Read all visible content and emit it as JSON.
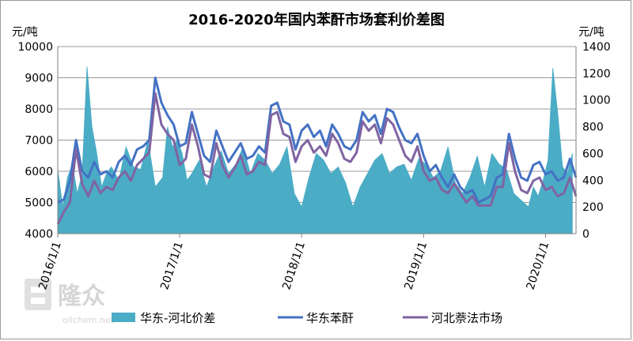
{
  "chart_data": {
    "type": "area+line",
    "title": "2016-2020年国内苯酐市场套利价差图",
    "left_unit": "元/吨",
    "right_unit": "元/吨",
    "y_left": {
      "min": 4000,
      "max": 10000,
      "ticks": [
        4000,
        5000,
        6000,
        7000,
        8000,
        9000,
        10000
      ],
      "tick_labels": [
        "4000",
        "5000",
        "6000",
        "7000",
        "8000",
        "9000",
        "10000"
      ]
    },
    "y_right": {
      "min": 0,
      "max": 1400,
      "ticks": [
        0,
        200,
        400,
        600,
        800,
        1000,
        1200,
        1400
      ],
      "tick_labels": [
        "0",
        "200",
        "400",
        "600",
        "800",
        "1000",
        "1200",
        "1400"
      ]
    },
    "x_axis": {
      "start": "2016/1/1",
      "end": "2020/3/31",
      "tick_labels": [
        "2016/1/1",
        "2017/1/1",
        "2018/1/1",
        "2019/1/1",
        "2020/1/1"
      ],
      "tick_positions": [
        2016.0,
        2017.0,
        2018.0,
        2019.0,
        2020.0
      ]
    },
    "grid": "horizontal",
    "legend_position": "bottom",
    "series": [
      {
        "name": "华东-河北价差",
        "kind": "area",
        "axis": "right",
        "color": "#4BACC6",
        "x": [
          2016.0,
          2016.04,
          2016.08,
          2016.12,
          2016.16,
          2016.2,
          2016.24,
          2016.28,
          2016.32,
          2016.36,
          2016.4,
          2016.44,
          2016.5,
          2016.56,
          2016.62,
          2016.68,
          2016.74,
          2016.8,
          2016.86,
          2016.9,
          2016.94,
          2016.98,
          2017.02,
          2017.06,
          2017.1,
          2017.16,
          2017.22,
          2017.28,
          2017.34,
          2017.4,
          2017.46,
          2017.52,
          2017.58,
          2017.64,
          2017.7,
          2017.76,
          2017.82,
          2017.88,
          2017.94,
          2018.0,
          2018.06,
          2018.12,
          2018.18,
          2018.24,
          2018.3,
          2018.36,
          2018.42,
          2018.48,
          2018.54,
          2018.6,
          2018.66,
          2018.72,
          2018.78,
          2018.84,
          2018.9,
          2018.96,
          2019.02,
          2019.08,
          2019.14,
          2019.2,
          2019.26,
          2019.32,
          2019.38,
          2019.44,
          2019.5,
          2019.56,
          2019.62,
          2019.68,
          2019.74,
          2019.8,
          2019.86,
          2019.9,
          2019.94,
          2019.98,
          2020.02,
          2020.06,
          2020.1,
          2020.14,
          2020.18,
          2020.22
        ],
        "values": [
          480,
          200,
          420,
          520,
          300,
          450,
          1250,
          800,
          600,
          350,
          450,
          500,
          400,
          650,
          500,
          480,
          700,
          350,
          420,
          800,
          650,
          700,
          600,
          400,
          450,
          550,
          350,
          500,
          620,
          450,
          520,
          650,
          450,
          600,
          550,
          450,
          520,
          650,
          300,
          200,
          420,
          600,
          550,
          450,
          500,
          380,
          200,
          350,
          450,
          550,
          600,
          450,
          500,
          520,
          400,
          560,
          520,
          420,
          470,
          650,
          380,
          300,
          420,
          580,
          350,
          600,
          520,
          480,
          300,
          250,
          200,
          350,
          280,
          400,
          550,
          1240,
          900,
          500,
          450,
          600
        ],
        "hint": "noisy filled area with sharp spikes; peaks near early 2016 (~1250) and early 2020 (~1240)"
      },
      {
        "name": "华东苯酐",
        "kind": "line",
        "axis": "left",
        "color": "#4472C4",
        "x": [
          2016.0,
          2016.05,
          2016.1,
          2016.15,
          2016.2,
          2016.25,
          2016.3,
          2016.35,
          2016.4,
          2016.45,
          2016.5,
          2016.55,
          2016.6,
          2016.65,
          2016.7,
          2016.75,
          2016.8,
          2016.85,
          2016.9,
          2016.95,
          2017.0,
          2017.05,
          2017.1,
          2017.15,
          2017.2,
          2017.25,
          2017.3,
          2017.35,
          2017.4,
          2017.45,
          2017.5,
          2017.55,
          2017.6,
          2017.65,
          2017.7,
          2017.75,
          2017.8,
          2017.85,
          2017.9,
          2017.95,
          2018.0,
          2018.05,
          2018.1,
          2018.15,
          2018.2,
          2018.25,
          2018.3,
          2018.35,
          2018.4,
          2018.45,
          2018.5,
          2018.55,
          2018.6,
          2018.65,
          2018.7,
          2018.75,
          2018.8,
          2018.85,
          2018.9,
          2018.95,
          2019.0,
          2019.05,
          2019.1,
          2019.15,
          2019.2,
          2019.25,
          2019.3,
          2019.35,
          2019.4,
          2019.45,
          2019.5,
          2019.55,
          2019.6,
          2019.65,
          2019.7,
          2019.75,
          2019.8,
          2019.85,
          2019.9,
          2019.95,
          2020.0,
          2020.05,
          2020.1,
          2020.15,
          2020.2,
          2020.25
        ],
        "values": [
          5000,
          5100,
          5700,
          7000,
          6000,
          5800,
          6300,
          5900,
          6000,
          5800,
          6300,
          6500,
          6200,
          6700,
          6800,
          7000,
          9000,
          8200,
          7800,
          7500,
          6800,
          6900,
          7900,
          7200,
          6500,
          6300,
          7300,
          6800,
          6300,
          6600,
          6900,
          6400,
          6500,
          6800,
          6600,
          8100,
          8200,
          7600,
          7500,
          6700,
          7300,
          7500,
          7100,
          7300,
          6800,
          7500,
          7200,
          6800,
          6700,
          7000,
          7900,
          7600,
          7800,
          7200,
          8000,
          7900,
          7400,
          7000,
          6900,
          7200,
          6500,
          6000,
          6200,
          5800,
          5500,
          5900,
          5500,
          5300,
          5400,
          5000,
          5100,
          5200,
          5800,
          5900,
          7200,
          6400,
          5800,
          5700,
          6200,
          6300,
          5900,
          6000,
          5700,
          5800,
          6400,
          5800
        ],
        "hint": "thick blue line, main price; peaks near 9000-9100 late 2016"
      },
      {
        "name": "河北萘法市场",
        "kind": "line",
        "axis": "left",
        "color": "#8064A2",
        "x": [
          2016.0,
          2016.05,
          2016.1,
          2016.15,
          2016.2,
          2016.25,
          2016.3,
          2016.35,
          2016.4,
          2016.45,
          2016.5,
          2016.55,
          2016.6,
          2016.65,
          2016.7,
          2016.75,
          2016.8,
          2016.85,
          2016.9,
          2016.95,
          2017.0,
          2017.05,
          2017.1,
          2017.15,
          2017.2,
          2017.25,
          2017.3,
          2017.35,
          2017.4,
          2017.45,
          2017.5,
          2017.55,
          2017.6,
          2017.65,
          2017.7,
          2017.75,
          2017.8,
          2017.85,
          2017.9,
          2017.95,
          2018.0,
          2018.05,
          2018.1,
          2018.15,
          2018.2,
          2018.25,
          2018.3,
          2018.35,
          2018.4,
          2018.45,
          2018.5,
          2018.55,
          2018.6,
          2018.65,
          2018.7,
          2018.75,
          2018.8,
          2018.85,
          2018.9,
          2018.95,
          2019.0,
          2019.05,
          2019.1,
          2019.15,
          2019.2,
          2019.25,
          2019.3,
          2019.35,
          2019.4,
          2019.45,
          2019.5,
          2019.55,
          2019.6,
          2019.65,
          2019.7,
          2019.75,
          2019.8,
          2019.85,
          2019.9,
          2019.95,
          2020.0,
          2020.05,
          2020.1,
          2020.15,
          2020.2,
          2020.25
        ],
        "values": [
          4300,
          4700,
          5000,
          6700,
          5600,
          5200,
          5700,
          5300,
          5500,
          5400,
          5800,
          6000,
          5700,
          6200,
          6400,
          6600,
          8500,
          7500,
          7200,
          7000,
          6200,
          6400,
          7500,
          6800,
          5900,
          5800,
          6900,
          6200,
          5800,
          6100,
          6500,
          5900,
          6000,
          6300,
          6200,
          7800,
          7900,
          7200,
          7100,
          6300,
          6800,
          7000,
          6600,
          6800,
          6500,
          7200,
          6900,
          6400,
          6300,
          6600,
          7600,
          7300,
          7500,
          6900,
          7700,
          7500,
          7000,
          6500,
          6300,
          6800,
          6000,
          5700,
          5800,
          5400,
          5300,
          5600,
          5300,
          5000,
          5200,
          4900,
          4900,
          4900,
          5500,
          5500,
          6900,
          6000,
          5400,
          5300,
          5700,
          5800,
          5400,
          5500,
          5200,
          5300,
          5800,
          5200
        ]
      }
    ],
    "legend": [
      "华东-河北价差",
      "华东苯酐",
      "河北萘法市场"
    ]
  },
  "watermark": {
    "brand": "隆众",
    "site": "oilchem.net"
  }
}
